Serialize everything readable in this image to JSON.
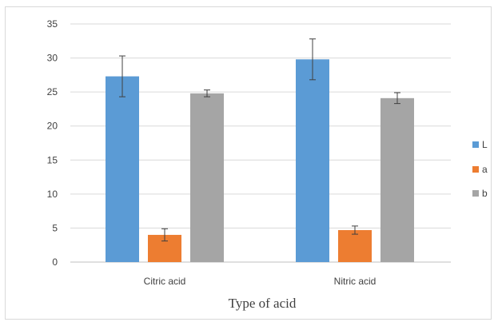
{
  "chart_data": {
    "type": "bar",
    "title": "",
    "xlabel": "Type of acid",
    "ylabel": "",
    "categories": [
      "Citric acid",
      "Nitric acid"
    ],
    "series": [
      {
        "name": "L",
        "values": [
          27.3,
          29.8
        ],
        "errors": [
          3.0,
          3.0
        ],
        "color": "#5b9bd5"
      },
      {
        "name": "a",
        "values": [
          4.0,
          4.7
        ],
        "errors": [
          0.9,
          0.6
        ],
        "color": "#ed7d31"
      },
      {
        "name": "b",
        "values": [
          24.8,
          24.1
        ],
        "errors": [
          0.5,
          0.8
        ],
        "color": "#a5a5a5"
      }
    ],
    "ylim": [
      0,
      35
    ],
    "yticks": [
      0,
      5,
      10,
      15,
      20,
      25,
      30,
      35
    ],
    "grid": true,
    "legend_position": "right"
  }
}
